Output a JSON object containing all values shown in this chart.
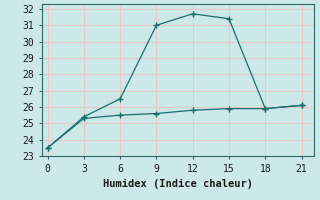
{
  "xlabel": "Humidex (Indice chaleur)",
  "ylabel": "",
  "bg_color": "#cce8e8",
  "grid_color": "#e8c8c8",
  "line_color": "#1a6e6e",
  "xlim": [
    -0.5,
    22
  ],
  "ylim": [
    23,
    32.3
  ],
  "xticks": [
    0,
    3,
    6,
    9,
    12,
    15,
    18,
    21
  ],
  "yticks": [
    23,
    24,
    25,
    26,
    27,
    28,
    29,
    30,
    31,
    32
  ],
  "series1_x": [
    0,
    3,
    6,
    9,
    12,
    15,
    18,
    21
  ],
  "series1_y": [
    23.5,
    25.4,
    26.5,
    31.0,
    31.7,
    31.4,
    25.9,
    26.1
  ],
  "series2_x": [
    0,
    3,
    6,
    9,
    12,
    15,
    18,
    21
  ],
  "series2_y": [
    23.5,
    25.3,
    25.5,
    25.6,
    25.8,
    25.9,
    25.9,
    26.1
  ]
}
